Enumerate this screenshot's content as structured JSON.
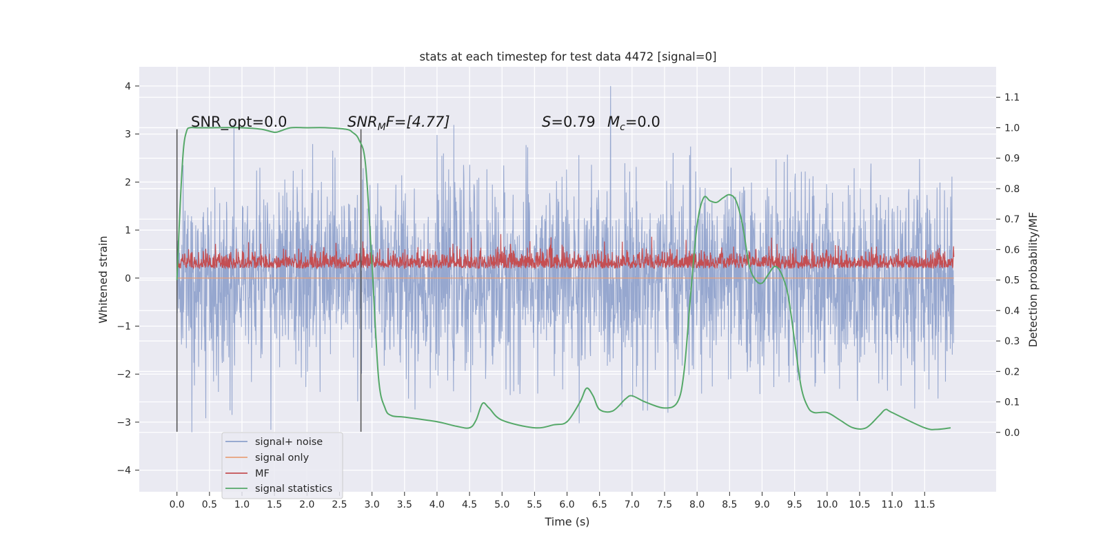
{
  "chart_data": {
    "type": "line",
    "title": "stats at each timestep for test data 4472 [signal=0]",
    "xlabel": "Time (s)",
    "ylabel": "Whitened strain",
    "ylabel_right": "Detection probability/MF",
    "xlim": [
      -0.58,
      12.6
    ],
    "ylim": [
      -4.45,
      4.4
    ],
    "ylim_right": [
      -0.195,
      1.2
    ],
    "x_ticks": [
      "0.0",
      "0.5",
      "1.0",
      "1.5",
      "2.0",
      "2.5",
      "3.0",
      "3.5",
      "4.0",
      "4.5",
      "5.0",
      "5.5",
      "6.0",
      "6.5",
      "7.0",
      "7.5",
      "8.0",
      "8.5",
      "9.0",
      "9.5",
      "10.0",
      "10.5",
      "11.0",
      "11.5"
    ],
    "y_ticks_left": [
      "4",
      "3",
      "2",
      "1",
      "0",
      "−1",
      "−2",
      "−3",
      "−4"
    ],
    "y_ticks_right": [
      "1.1",
      "1.0",
      "0.9",
      "0.8",
      "0.7",
      "0.6",
      "0.5",
      "0.4",
      "0.3",
      "0.2",
      "0.1",
      "0.0"
    ],
    "grid": true,
    "legend_position": "lower-left",
    "colors": {
      "signal_noise": "#8da0cb",
      "signal_only": "#e8a07a",
      "mf": "#c44e52",
      "signal_statistics": "#55a868",
      "background": "#eaeaf2",
      "vline": "#555555"
    },
    "annotations": {
      "snr_opt_label": "SNR_opt=0.0",
      "snr_mf_name": "SNR",
      "snr_mf_sub": "M",
      "snr_mf_rest": "F=[4.77]",
      "s_name": "S",
      "s_value": "=0.79",
      "mc_name": "M",
      "mc_sub": "c",
      "mc_value": "=0.0"
    },
    "vlines_x": [
      0.0,
      2.83
    ],
    "vlines_span": [
      -3.2,
      3.1
    ],
    "series": [
      {
        "name": "signal+ noise",
        "axis": "left",
        "kind": "noise",
        "x_range": [
          0.0,
          11.95
        ],
        "amplitude_std": 1.0
      },
      {
        "name": "signal only",
        "axis": "left",
        "x": [
          0.0,
          11.95
        ],
        "y": [
          0.0,
          0.0
        ]
      },
      {
        "name": "MF",
        "axis": "left",
        "kind": "noise",
        "x_range": [
          0.0,
          11.95
        ],
        "baseline": 0.25,
        "amplitude_range": [
          0.0,
          1.0
        ]
      },
      {
        "name": "signal statistics",
        "axis": "right",
        "x": [
          0.0,
          0.05,
          0.1,
          0.15,
          0.2,
          0.3,
          0.5,
          1.0,
          1.3,
          1.5,
          1.6,
          1.75,
          2.0,
          2.3,
          2.6,
          2.7,
          2.8,
          2.9,
          3.0,
          3.1,
          3.2,
          3.3,
          3.5,
          4.0,
          4.3,
          4.5,
          4.6,
          4.7,
          4.8,
          5.0,
          5.5,
          5.8,
          6.0,
          6.2,
          6.3,
          6.4,
          6.5,
          6.7,
          6.9,
          7.0,
          7.2,
          7.5,
          7.7,
          7.8,
          7.9,
          8.0,
          8.1,
          8.2,
          8.3,
          8.4,
          8.5,
          8.6,
          8.7,
          8.8,
          8.9,
          9.0,
          9.1,
          9.2,
          9.3,
          9.4,
          9.5,
          9.6,
          9.7,
          9.8,
          10.0,
          10.2,
          10.4,
          10.6,
          10.8,
          10.9,
          11.0,
          11.5,
          11.7,
          11.9
        ],
        "y": [
          0.5,
          0.75,
          0.93,
          0.99,
          1.0,
          1.0,
          1.0,
          1.0,
          0.995,
          0.985,
          0.99,
          1.0,
          1.0,
          1.0,
          0.995,
          0.985,
          0.96,
          0.88,
          0.55,
          0.18,
          0.08,
          0.055,
          0.05,
          0.035,
          0.02,
          0.015,
          0.04,
          0.095,
          0.08,
          0.04,
          0.015,
          0.025,
          0.035,
          0.1,
          0.145,
          0.12,
          0.075,
          0.07,
          0.11,
          0.12,
          0.1,
          0.08,
          0.1,
          0.2,
          0.45,
          0.68,
          0.77,
          0.76,
          0.755,
          0.77,
          0.78,
          0.76,
          0.68,
          0.55,
          0.5,
          0.49,
          0.52,
          0.545,
          0.52,
          0.45,
          0.3,
          0.15,
          0.085,
          0.065,
          0.065,
          0.04,
          0.015,
          0.015,
          0.055,
          0.075,
          0.065,
          0.015,
          0.01,
          0.015
        ]
      }
    ]
  }
}
